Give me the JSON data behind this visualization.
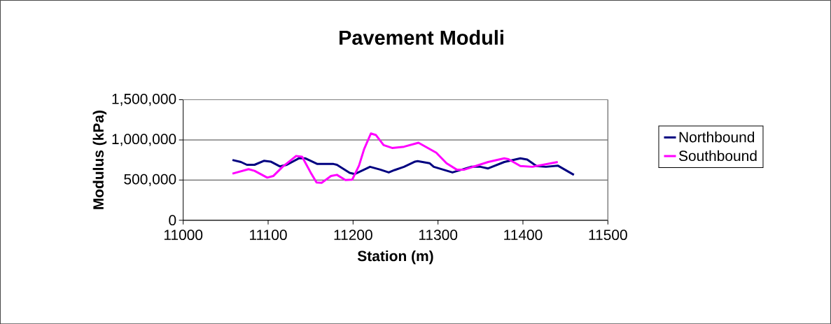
{
  "chart_data": {
    "type": "line",
    "title": "Pavement Moduli",
    "xlabel": "Station (m)",
    "ylabel": "Modulus (kPa)",
    "xlim": [
      11000,
      11500
    ],
    "xticks": [
      11000,
      11100,
      11200,
      11300,
      11400,
      11500
    ],
    "ylim": [
      0,
      1500000
    ],
    "yticks": [
      0,
      {
        "value": 500000,
        "label": "500,000"
      },
      {
        "value": 1000000,
        "label": "1,000,000"
      },
      {
        "value": 1500000,
        "label": "1,500,000"
      }
    ],
    "grid": "y",
    "legend": "right",
    "marker": "none",
    "line_style": "solid",
    "series": [
      {
        "name": "Northbound",
        "color": "#000080",
        "x": [
          11058,
          11068,
          11075,
          11084,
          11095,
          11103,
          11114,
          11122,
          11136,
          11144,
          11158,
          11177,
          11181,
          11196,
          11202,
          11220,
          11232,
          11242,
          11249,
          11260,
          11273,
          11276,
          11290,
          11295,
          11317,
          11339,
          11350,
          11359,
          11378,
          11397,
          11405,
          11416,
          11427,
          11441,
          11460
        ],
        "values": [
          750000,
          725000,
          690000,
          690000,
          740000,
          730000,
          670000,
          690000,
          770000,
          770000,
          700000,
          700000,
          690000,
          590000,
          575000,
          665000,
          630000,
          595000,
          625000,
          665000,
          730000,
          735000,
          710000,
          665000,
          595000,
          665000,
          665000,
          645000,
          725000,
          770000,
          755000,
          675000,
          665000,
          680000,
          565000
        ]
      },
      {
        "name": "Southbound",
        "color": "#ff00ff",
        "x": [
          11058,
          11077,
          11084,
          11099,
          11106,
          11117,
          11133,
          11140,
          11150,
          11157,
          11163,
          11174,
          11181,
          11191,
          11199,
          11207,
          11213,
          11221,
          11227,
          11236,
          11246,
          11260,
          11277,
          11298,
          11310,
          11322,
          11331,
          11359,
          11378,
          11383,
          11397,
          11411,
          11441
        ],
        "values": [
          580000,
          635000,
          615000,
          530000,
          550000,
          665000,
          800000,
          790000,
          595000,
          470000,
          465000,
          550000,
          565000,
          500000,
          505000,
          680000,
          885000,
          1080000,
          1060000,
          935000,
          900000,
          915000,
          965000,
          840000,
          710000,
          630000,
          630000,
          725000,
          770000,
          760000,
          675000,
          665000,
          725000
        ]
      }
    ]
  }
}
